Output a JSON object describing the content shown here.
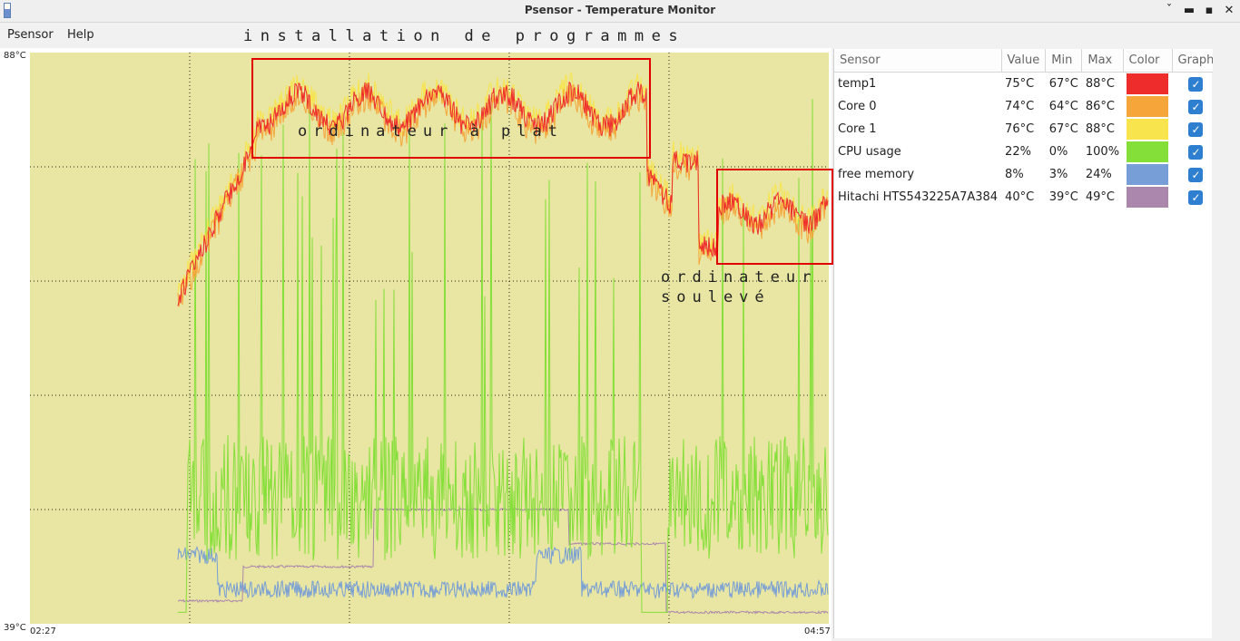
{
  "window": {
    "title": "Psensor - Temperature Monitor",
    "buttons": [
      "ˇ",
      "▬",
      "▪",
      "✕"
    ]
  },
  "menu": {
    "items": [
      "Psensor",
      "Help"
    ]
  },
  "annotations": {
    "top": "installation de programmes",
    "flat": "ordinateur à plat",
    "raised_line1": "ordinateur",
    "raised_line2": "soulevé"
  },
  "graph": {
    "y_max_label": "88°C",
    "y_min_label": "39°C",
    "x_start_label": "02:27",
    "x_end_label": "04:57"
  },
  "table": {
    "headers": [
      "Sensor",
      "Value",
      "Min",
      "Max",
      "Color",
      "Graph"
    ],
    "rows": [
      {
        "name": "temp1",
        "value": "75°C",
        "min": "67°C",
        "max": "88°C",
        "color": "#ee2c2c",
        "graph": true
      },
      {
        "name": "Core 0",
        "value": "74°C",
        "min": "64°C",
        "max": "86°C",
        "color": "#f5a53a",
        "graph": true
      },
      {
        "name": "Core 1",
        "value": "76°C",
        "min": "67°C",
        "max": "88°C",
        "color": "#f8e44c",
        "graph": true
      },
      {
        "name": "CPU usage",
        "value": "22%",
        "min": "0%",
        "max": "100%",
        "color": "#85df39",
        "graph": true
      },
      {
        "name": "free memory",
        "value": "8%",
        "min": "3%",
        "max": "24%",
        "color": "#779ed6",
        "graph": true
      },
      {
        "name": "Hitachi HTS543225A7A384",
        "value": "40°C",
        "min": "39°C",
        "max": "49°C",
        "color": "#ab86ad",
        "graph": true
      }
    ]
  },
  "colors": {
    "graph_bg": "#e8e6a2",
    "grid": "#222222",
    "annotation_box": "#e00000"
  }
}
